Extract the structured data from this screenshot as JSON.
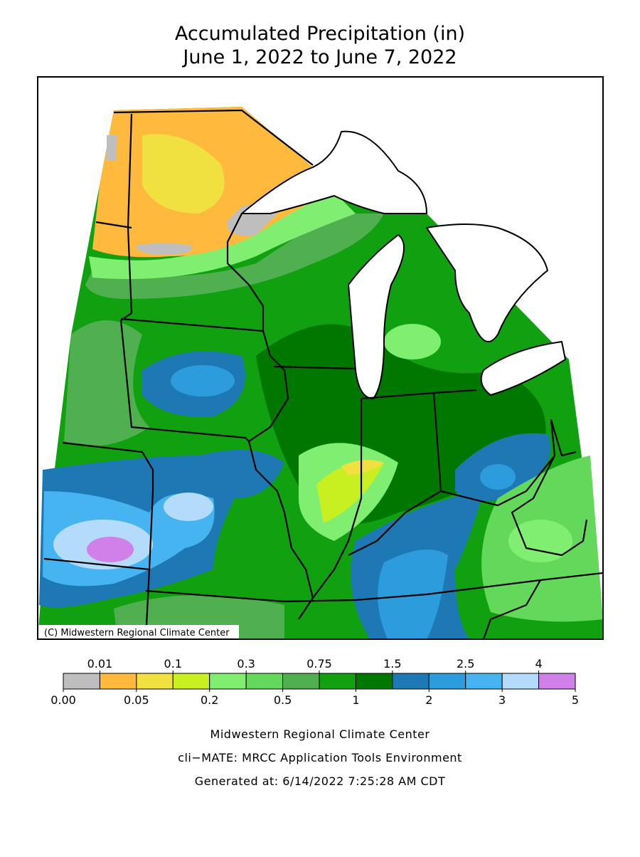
{
  "title": [
    "Accumulated Precipitation (in)",
    "June 1, 2022 to June 7, 2022"
  ],
  "map": {
    "credit": "(C) Midwestern Regional Climate Center"
  },
  "legend": {
    "colors": [
      "#bebebe",
      "#ffb93c",
      "#f0e040",
      "#c8f020",
      "#80ee70",
      "#64d85a",
      "#50b050",
      "#10a010",
      "#007800",
      "#1e78b4",
      "#2c9cdc",
      "#46b4f0",
      "#b4dcfa",
      "#d080e8"
    ],
    "breaks": [
      {
        "value": 0,
        "label": "0.00"
      },
      0.01,
      0.05,
      0.1,
      0.2,
      0.3,
      0.5,
      0.75,
      1,
      1.5,
      2,
      2.5,
      3,
      4,
      5
    ]
  },
  "footer": [
    "Midwestern Regional Climate Center",
    "cli−MATE: MRCC Application Tools Environment",
    "Generated at: 6/14/2022 7:25:28 AM CDT"
  ]
}
